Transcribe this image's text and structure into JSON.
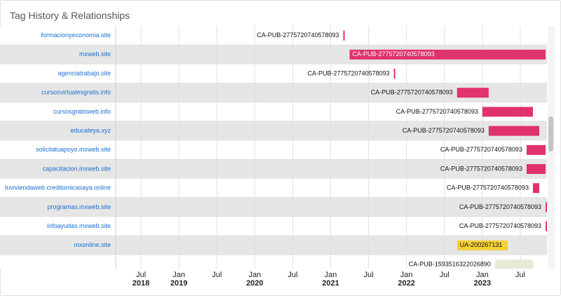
{
  "chart_data": {
    "type": "timeline",
    "title": "Tag History & Relationships",
    "categories": [
      "formacionyeconomia.site",
      "mxweb.site",
      "agenciatrabajo.site",
      "cursosvirtualesgratis.info",
      "cursosgratisweb.info",
      "educateya.xyz",
      "solicitatuapoyo.mxweb.site",
      "capacitacion.mxweb.site",
      "tuviviendaweb.creditomicasaya.online",
      "programas.mxweb.site",
      "infoayudas.mxweb.site",
      "mxonline.site",
      null
    ],
    "bars": [
      {
        "label": "CA-PUB-2775720740578093",
        "start": "2021-03",
        "end": "2021-03",
        "color": "#e0326e"
      },
      {
        "label": "CA-PUB-2775720740578093",
        "start": "2021-04",
        "end": "2023-11",
        "color": "#e0326e"
      },
      {
        "label": "CA-PUB-2775720740578093",
        "start": "2021-11",
        "end": "2021-11",
        "color": "#e0326e"
      },
      {
        "label": "CA-PUB-2775720740578093",
        "start": "2022-09",
        "end": "2023-02",
        "color": "#e0326e"
      },
      {
        "label": "CA-PUB-2775720740578093",
        "start": "2023-01",
        "end": "2023-09",
        "color": "#e0326e"
      },
      {
        "label": "CA-PUB-2775720740578093",
        "start": "2023-02",
        "end": "2023-10",
        "color": "#e0326e"
      },
      {
        "label": "CA-PUB-2775720740578093",
        "start": "2023-08",
        "end": "2023-11",
        "color": "#e0326e"
      },
      {
        "label": "CA-PUB-2775720740578093",
        "start": "2023-08",
        "end": "2023-11",
        "color": "#e0326e"
      },
      {
        "label": "CA-PUB-2775720740578093",
        "start": "2023-09",
        "end": "2023-10",
        "color": "#e0326e"
      },
      {
        "label": "CA-PUB-2775720740578093",
        "start": "2023-11",
        "end": "2023-11",
        "color": "#e0326e"
      },
      {
        "label": "CA-PUB-2775720740578093",
        "start": "2023-11",
        "end": "2023-11",
        "color": "#e0326e"
      },
      {
        "label": "UA-200267131",
        "start": "2022-09",
        "end": "2023-05",
        "color": "#f5d033"
      },
      {
        "label": "CA-PUB-1593516322026890",
        "start": "2023-03",
        "end": "2023-09",
        "color": "#e8ead5"
      }
    ],
    "xlim": [
      "2018-03",
      "2023-11"
    ],
    "xticks": [
      {
        "value": "2018-07",
        "label": "Jul\n2018"
      },
      {
        "value": "2019-01",
        "label": "Jan\n2019"
      },
      {
        "value": "2019-07",
        "label": "Jul"
      },
      {
        "value": "2020-01",
        "label": "Jan\n2020"
      },
      {
        "value": "2020-07",
        "label": "Jul"
      },
      {
        "value": "2021-01",
        "label": "Jan\n2021"
      },
      {
        "value": "2021-07",
        "label": "Jul"
      },
      {
        "value": "2022-01",
        "label": "Jan\n2022"
      },
      {
        "value": "2022-07",
        "label": "Jul"
      },
      {
        "value": "2023-01",
        "label": "Jan\n2023"
      },
      {
        "value": "2023-07",
        "label": "Jul"
      }
    ],
    "grid": true
  }
}
